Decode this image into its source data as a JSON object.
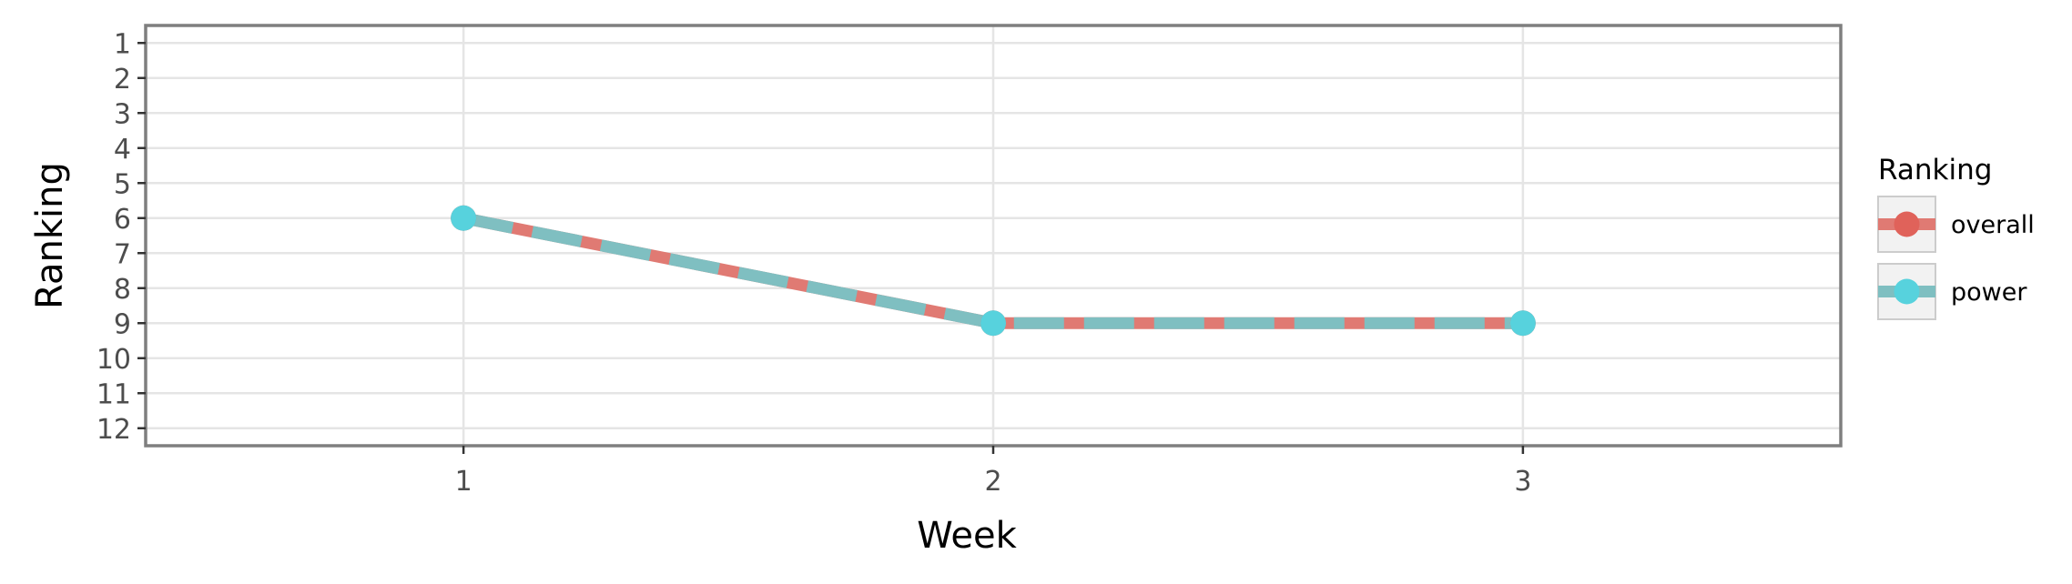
{
  "chart_data": {
    "type": "line",
    "xlabel": "Week",
    "ylabel": "Ranking",
    "x": [
      1,
      2,
      3
    ],
    "x_ticks": [
      "1",
      "2",
      "3"
    ],
    "xlim": [
      0.4,
      3.6
    ],
    "y_ticks": [
      "1",
      "2",
      "3",
      "4",
      "5",
      "6",
      "7",
      "8",
      "9",
      "10",
      "11",
      "12"
    ],
    "ylim": [
      0.5,
      12.5
    ],
    "y_reversed": true,
    "grid": true,
    "series": [
      {
        "name": "overall",
        "values": [
          6,
          9,
          9
        ],
        "color": "#e07a73",
        "marker_color": "#e0625a"
      },
      {
        "name": "power",
        "values": [
          6,
          9,
          9
        ],
        "color": "#7fbfc1",
        "marker_color": "#57d2dd"
      }
    ],
    "legend": {
      "title": "Ranking",
      "position": "right"
    }
  }
}
